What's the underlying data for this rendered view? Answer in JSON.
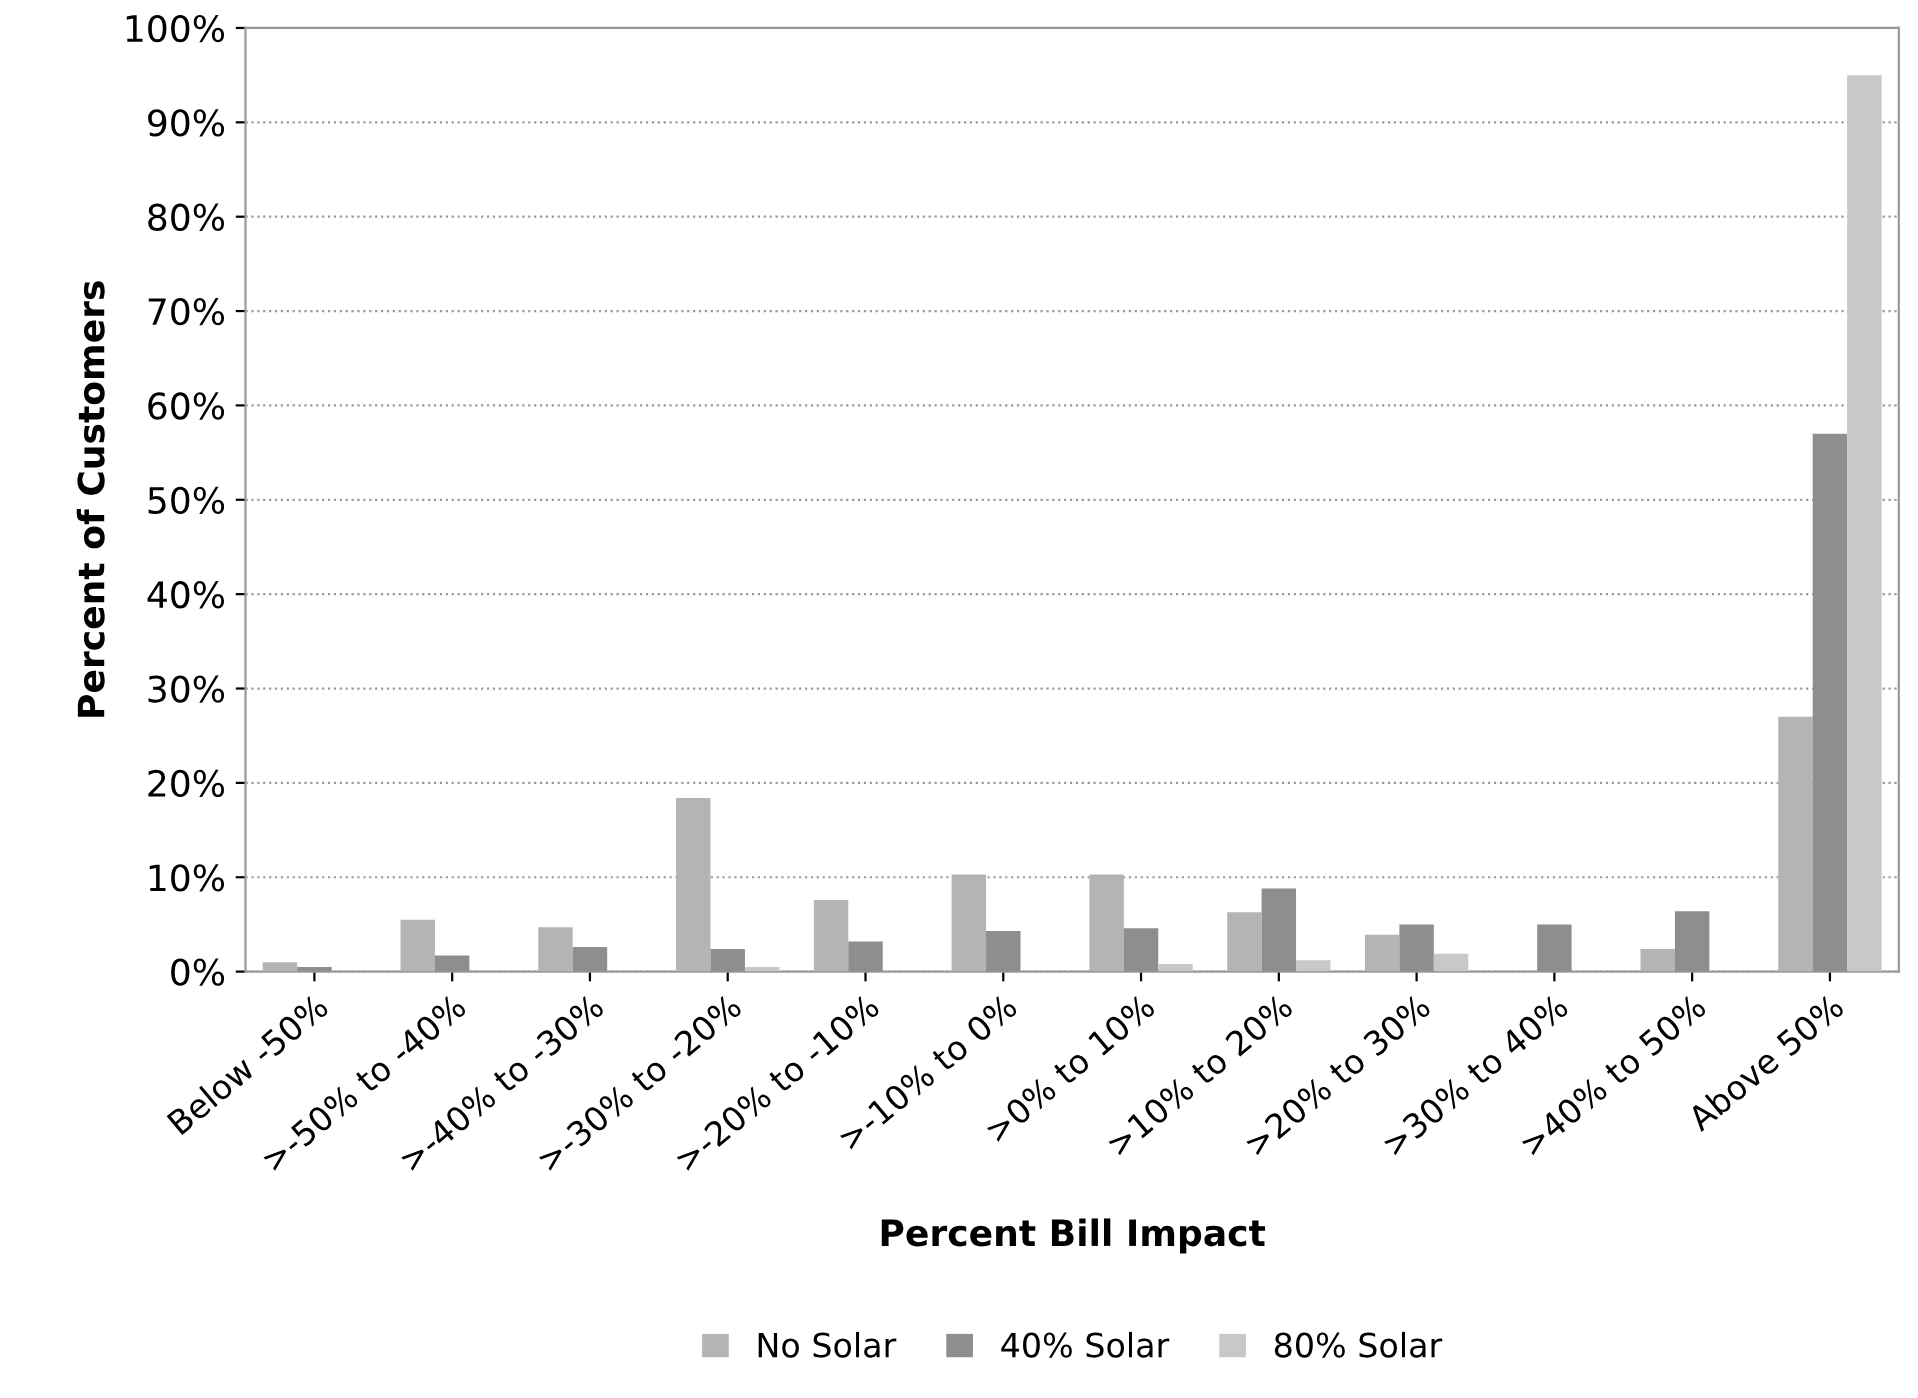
{
  "chart_data": {
    "type": "bar",
    "xlabel": "Percent Bill Impact",
    "ylabel": "Percent of Customers",
    "categories": [
      "Below -50%",
      ">-50% to -40%",
      ">-40% to -30%",
      ">-30% to -20%",
      ">-20% to -10%",
      ">-10% to 0%",
      ">0% to 10%",
      ">10% to 20%",
      ">20% to 30%",
      ">30% to 40%",
      ">40% to 50%",
      "Above 50%"
    ],
    "series": [
      {
        "name": "No Solar",
        "color": "#b4b4b4",
        "values": [
          1,
          5.5,
          4.7,
          18.4,
          7.6,
          10.3,
          10.3,
          6.3,
          3.9,
          0,
          2.4,
          27
        ]
      },
      {
        "name": "40% Solar",
        "color": "#8e8e8e",
        "values": [
          0.5,
          1.7,
          2.6,
          2.4,
          3.2,
          4.3,
          4.6,
          8.8,
          5.0,
          5.0,
          6.4,
          57
        ]
      },
      {
        "name": "80% Solar",
        "color": "#c8c8c8",
        "values": [
          0,
          0,
          0,
          0.5,
          0,
          0,
          0.8,
          1.2,
          1.9,
          0,
          0,
          95
        ]
      }
    ],
    "ylim": [
      0,
      100
    ],
    "yticks": [
      {
        "value": 0,
        "label": "0%"
      },
      {
        "value": 10,
        "label": "10%"
      },
      {
        "value": 20,
        "label": "20%"
      },
      {
        "value": 30,
        "label": "30%"
      },
      {
        "value": 40,
        "label": "40%"
      },
      {
        "value": 50,
        "label": "50%"
      },
      {
        "value": 60,
        "label": "60%"
      },
      {
        "value": 70,
        "label": "70%"
      },
      {
        "value": 80,
        "label": "80%"
      },
      {
        "value": 90,
        "label": "90%"
      },
      {
        "value": 100,
        "label": "100%"
      }
    ],
    "grid": "y",
    "legend": "bottom"
  }
}
